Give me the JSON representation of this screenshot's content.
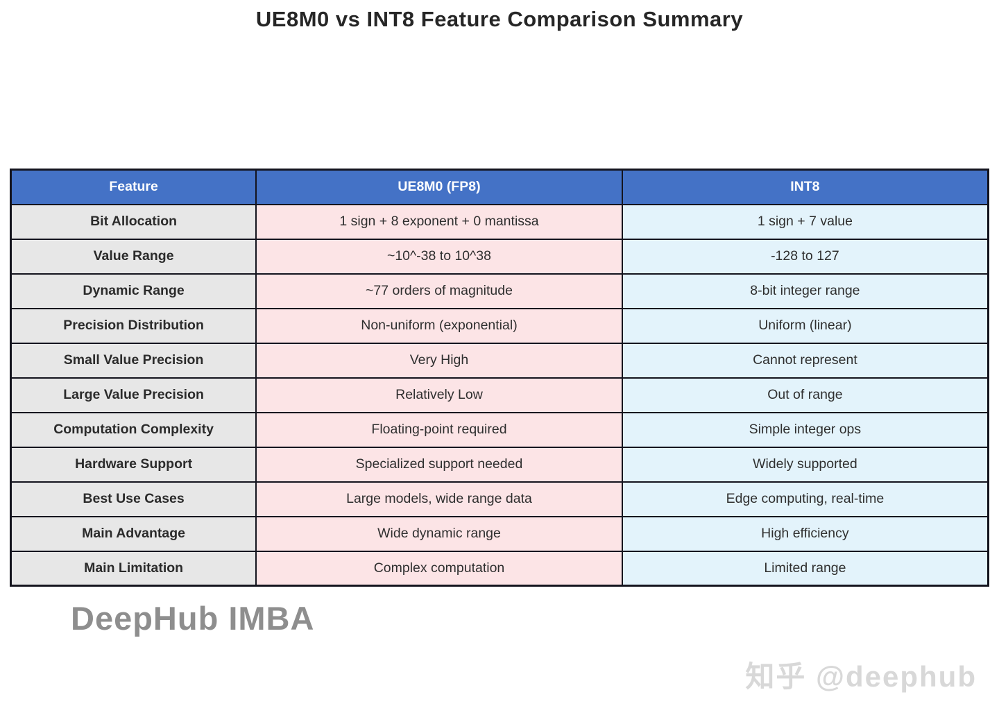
{
  "title": "UE8M0 vs INT8 Feature Comparison Summary",
  "colors": {
    "header_bg": "#4472C6",
    "header_text": "#ffffff",
    "feature_col_bg": "#E7E7E7",
    "ue8m0_col_bg": "#FCE4E6",
    "int8_col_bg": "#E3F3FB",
    "border": "#14141E",
    "title_text": "#262626",
    "cell_text": "#2F2F2F",
    "brand_watermark_text": "#8E8E8E",
    "credit_watermark_text": "#D8D8D8"
  },
  "chart_data": {
    "type": "table",
    "columns": [
      "Feature",
      "UE8M0 (FP8)",
      "INT8"
    ],
    "rows": [
      [
        "Bit Allocation",
        "1 sign + 8 exponent + 0 mantissa",
        "1 sign + 7 value"
      ],
      [
        "Value Range",
        "~10^-38 to 10^38",
        "-128 to 127"
      ],
      [
        "Dynamic Range",
        "~77 orders of magnitude",
        "8-bit integer range"
      ],
      [
        "Precision Distribution",
        "Non-uniform (exponential)",
        "Uniform (linear)"
      ],
      [
        "Small Value Precision",
        "Very High",
        "Cannot represent"
      ],
      [
        "Large Value Precision",
        "Relatively Low",
        "Out of range"
      ],
      [
        "Computation Complexity",
        "Floating-point required",
        "Simple integer ops"
      ],
      [
        "Hardware Support",
        "Specialized support needed",
        "Widely supported"
      ],
      [
        "Best Use Cases",
        "Large models, wide range data",
        "Edge computing, real-time"
      ],
      [
        "Main Advantage",
        "Wide dynamic range",
        "High efficiency"
      ],
      [
        "Main Limitation",
        "Complex computation",
        "Limited range"
      ]
    ]
  },
  "watermarks": {
    "brand": "DeepHub IMBA",
    "credit": "知乎 @deephub"
  }
}
